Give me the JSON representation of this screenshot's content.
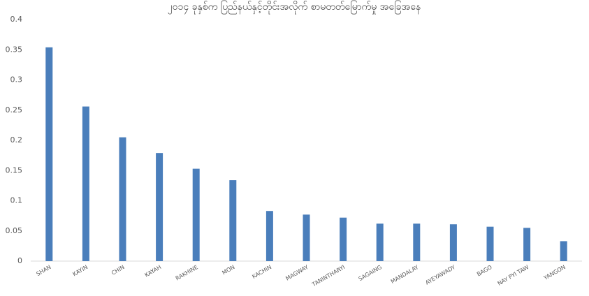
{
  "chart_data": {
    "type": "bar",
    "title": "၂၀၁၄ ခုနှစ်က ပြည်နယ်နှင့်တိုင်းအလိုက် စာမတတ်မြောက်မှု အခြေအနေ",
    "categories": [
      "SHAN",
      "KAYIN",
      "CHIN",
      "KAYAH",
      "RAKHINE",
      "MON",
      "KACHIN",
      "MAGWAY",
      "TANINTHARYI",
      "SAGAING",
      "MANDALAY",
      "AYEYAWADY",
      "BAGO",
      "NAY PYI TAW",
      "YANGON"
    ],
    "values": [
      0.354,
      0.256,
      0.205,
      0.179,
      0.153,
      0.134,
      0.083,
      0.077,
      0.072,
      0.062,
      0.062,
      0.061,
      0.057,
      0.055,
      0.033
    ],
    "color": "#4a7ebb",
    "ylim": [
      0,
      0.4
    ],
    "yticks": [
      0,
      0.05,
      0.1,
      0.15,
      0.2,
      0.25,
      0.3,
      0.35,
      0.4
    ],
    "grid": false
  }
}
